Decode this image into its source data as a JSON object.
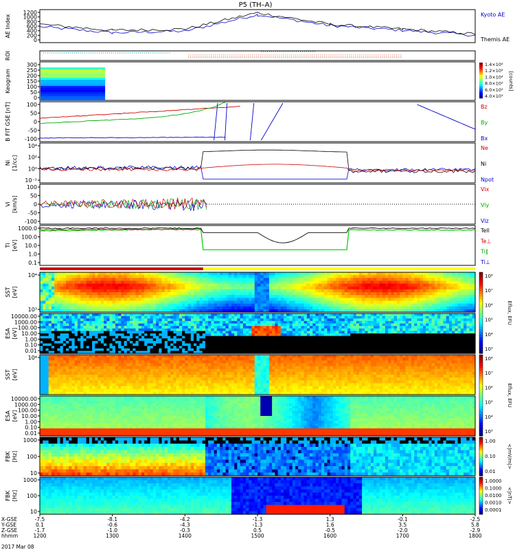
{
  "title": "P5 (TH–A)",
  "time_axis": {
    "range": [
      1200,
      1800
    ],
    "tick_labels": [
      "1200",
      "1300",
      "1400",
      "1500",
      "1600",
      "1700",
      "1800"
    ],
    "rows": [
      {
        "label": "X-GSE",
        "values": [
          "-7.5",
          "-8.1",
          "-4.2",
          "-1.3",
          "1.3",
          "-0.1",
          "-2.5"
        ]
      },
      {
        "label": "Y-GSE",
        "values": [
          "0.1",
          "-0.6",
          "-4.3",
          "-1.3",
          "1.6",
          "3.5",
          "5.8"
        ]
      },
      {
        "label": "Z-GSE",
        "values": [
          "-1.7",
          "-1.0",
          "-0.3",
          "0.5",
          "-0.5",
          "-2.0",
          "-2.9"
        ]
      },
      {
        "label": "hhmm",
        "values": [
          "1200",
          "1300",
          "1400",
          "1500",
          "1600",
          "1700",
          "1800"
        ]
      }
    ],
    "date": "2017 Mar 08"
  },
  "panels": {
    "ae": {
      "ylabel": "AE Index",
      "ticks": [
        "1200",
        "1000",
        "800",
        "600",
        "400",
        "200",
        "0"
      ],
      "legend": [
        {
          "text": "Kyoto AE",
          "color": "#0000cc"
        },
        {
          "text": "Themis AE",
          "color": "#000000"
        }
      ]
    },
    "roi": {
      "ylabel": "ROI"
    },
    "keogram": {
      "ylabel": "Keogram",
      "ticks": [
        "300",
        "250",
        "200",
        "150",
        "100",
        "50",
        "0"
      ],
      "colorbar": {
        "ticks": [
          "1.4×10⁴",
          "1.2×10⁴",
          "1.0×10⁴",
          "8.0×10³",
          "6.0×10³",
          "4.0×10³"
        ],
        "unit": "[counts]"
      }
    },
    "bfit": {
      "ylabel": "B FIT GSE [nT]",
      "ticks": [
        "100",
        "50",
        "0",
        "-50",
        "-100"
      ],
      "legend": [
        {
          "text": "Bz",
          "color": "#cc0000"
        },
        {
          "text": "By",
          "color": "#00aa00"
        },
        {
          "text": "Bx",
          "color": "#0000cc"
        }
      ]
    },
    "ni": {
      "ylabel": "Ni",
      "ylabel2": "[1/cc]",
      "ticks": [
        "10⁴",
        "10²",
        "10⁰",
        "10⁻²"
      ],
      "legend": [
        {
          "text": "Ne",
          "color": "#cc0000"
        },
        {
          "text": "Ni",
          "color": "#000000"
        },
        {
          "text": "Npot",
          "color": "#0000cc"
        }
      ]
    },
    "vi": {
      "ylabel": "Vi",
      "ylabel2": "[km/s]",
      "ticks": [
        "100",
        "50",
        "0",
        "-50",
        "-100"
      ],
      "legend": [
        {
          "text": "Vix",
          "color": "#cc0000"
        },
        {
          "text": "Viy",
          "color": "#00aa00"
        },
        {
          "text": "Viz",
          "color": "#0000cc"
        }
      ]
    },
    "ti": {
      "ylabel": "Ti",
      "ylabel2": "[eV]",
      "ticks": [
        "1000.0",
        "100.0",
        "10.0",
        "1.0",
        "0.1"
      ],
      "legend": [
        {
          "text": "Tell",
          "color": "#000000"
        },
        {
          "text": "Te⊥",
          "color": "#cc0000"
        },
        {
          "text": "Ti∥",
          "color": "#00aa00"
        },
        {
          "text": "Ti⊥",
          "color": "#0000cc"
        }
      ]
    },
    "sst_i": {
      "ylabel": "SST",
      "ylabel2": "[eV]",
      "ticks": [
        "10⁴",
        "10³"
      ]
    },
    "esa_i": {
      "ylabel": "ESA",
      "ylabel2": "[eV]",
      "ticks": [
        "10000.00",
        "1000.00",
        "100.00",
        "10.00",
        "1.00",
        "0.10",
        "0.01"
      ]
    },
    "sst_e": {
      "ylabel": "SST",
      "ylabel2": "[eV]",
      "ticks": [
        "10⁴"
      ]
    },
    "esa_e": {
      "ylabel": "ESA",
      "ylabel2": "[eV]",
      "ticks": [
        "10000.00",
        "1000.00",
        "100.00",
        "10.00",
        "1.00",
        "0.10",
        "0.01"
      ]
    },
    "fbk1": {
      "ylabel": "FBK",
      "ylabel2": "[Hz]",
      "ticks": [
        "1000",
        "100",
        "10"
      ]
    },
    "fbk2": {
      "ylabel": "FBK",
      "ylabel2": "[Hz]",
      "ticks": [
        "1000",
        "100",
        "10"
      ]
    },
    "eflux_colorbar": {
      "ticks": [
        "10⁸",
        "10⁷",
        "10⁶",
        "10⁵",
        "10⁴",
        "10³"
      ],
      "unit": "Eflux, EFU"
    },
    "mvm_colorbar": {
      "ticks": [
        "1.00",
        "0.10",
        "0.01"
      ],
      "unit": "<|mV/m|>"
    },
    "nt_colorbar": {
      "ticks": [
        "1.0000",
        "0.1000",
        "0.0100",
        "0.0010",
        "0.0001"
      ],
      "unit": "<|nT|>"
    }
  },
  "chart_data": {
    "type": "line",
    "title": "P5 (TH–A)",
    "x_units": "hhmm UT",
    "x": [
      1200,
      1300,
      1400,
      1500,
      1600,
      1700,
      1800
    ],
    "series": [
      {
        "name": "Kyoto AE",
        "values": [
          600,
          350,
          420,
          1100,
          650,
          450,
          250
        ]
      },
      {
        "name": "Themis AE",
        "values": [
          700,
          450,
          500,
          1180,
          700,
          500,
          300
        ]
      }
    ],
    "ylim": [
      0,
      1250
    ]
  }
}
